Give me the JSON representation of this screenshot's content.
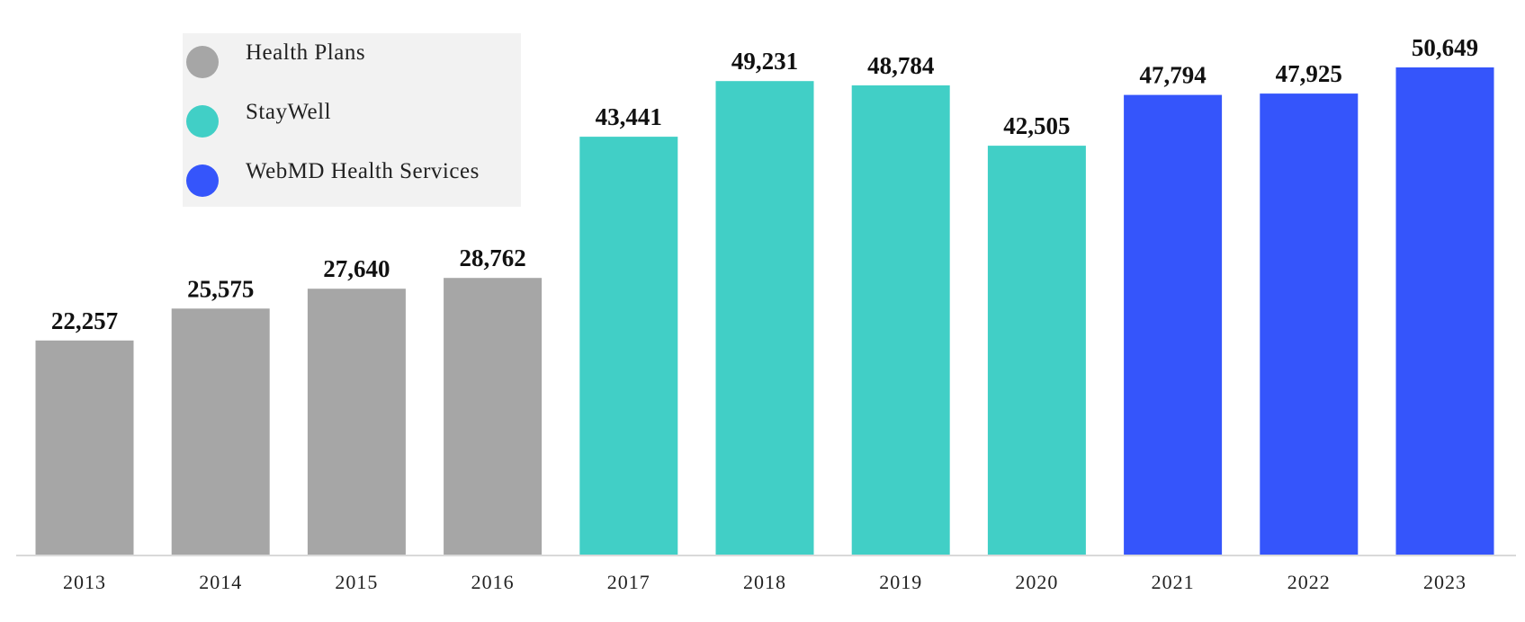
{
  "chart_data": {
    "type": "bar",
    "categories": [
      "2013",
      "2014",
      "2015",
      "2016",
      "2017",
      "2018",
      "2019",
      "2020",
      "2021",
      "2022",
      "2023"
    ],
    "values": [
      22257,
      25575,
      27640,
      28762,
      43441,
      49231,
      48784,
      42505,
      47794,
      47925,
      50649
    ],
    "value_labels": [
      "22,257",
      "25,575",
      "27,640",
      "28,762",
      "43,441",
      "49,231",
      "48,784",
      "42,505",
      "47,794",
      "47,925",
      "50,649"
    ],
    "bar_groups": [
      "Health Plans",
      "Health Plans",
      "Health Plans",
      "Health Plans",
      "StayWell",
      "StayWell",
      "StayWell",
      "StayWell",
      "WebMD Health Services",
      "WebMD Health Services",
      "WebMD Health Services"
    ],
    "legend": [
      {
        "label": "Health Plans",
        "color": "#a6a6a6"
      },
      {
        "label": "StayWell",
        "color": "#41cfc6"
      },
      {
        "label": "WebMD Health Services",
        "color": "#3555fb"
      }
    ],
    "legend_placement": "top-left",
    "ylim": [
      0,
      50649
    ],
    "grid": false,
    "title": "",
    "xlabel": "",
    "ylabel": ""
  }
}
